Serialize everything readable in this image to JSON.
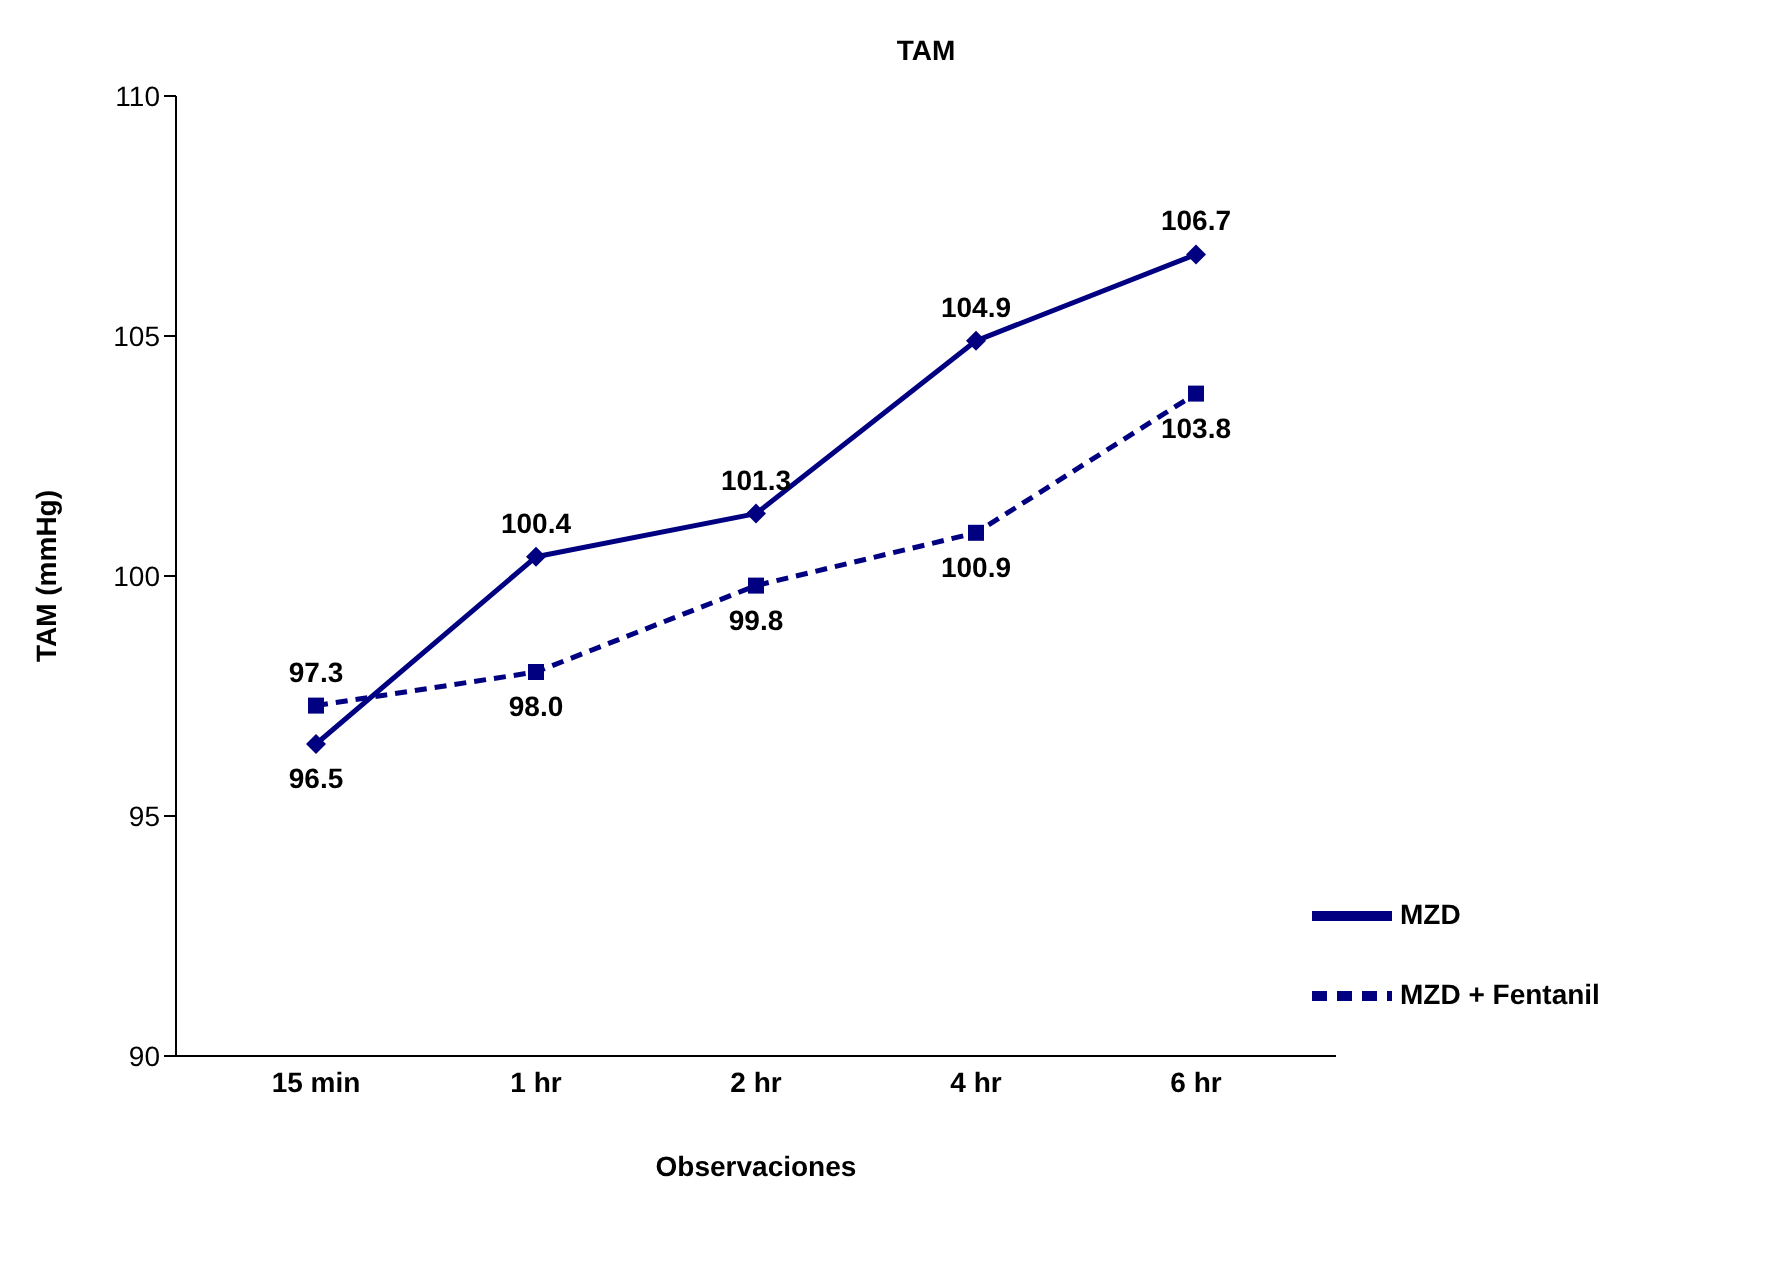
{
  "chart_data": {
    "type": "line",
    "title": "TAM",
    "xlabel": "Observaciones",
    "ylabel": "TAM (mmHg)",
    "categories": [
      "15 min",
      "1 hr",
      "2 hr",
      "4 hr",
      "6 hr"
    ],
    "series": [
      {
        "name": "MZD",
        "color": "#000080",
        "values": [
          96.5,
          100.4,
          101.3,
          104.9,
          106.7
        ],
        "value_labels": [
          "96.5",
          "100.4",
          "101.3",
          "104.9",
          "106.7"
        ],
        "marker": "diamond",
        "line_style": "solid"
      },
      {
        "name": "MZD + Fentanil",
        "color": "#000080",
        "values": [
          97.3,
          98.0,
          99.8,
          100.9,
          103.8
        ],
        "value_labels": [
          "97.3",
          "98.0",
          "99.8",
          "100.9",
          "103.8"
        ],
        "marker": "square",
        "line_style": "dashed"
      }
    ],
    "ylim": [
      90,
      110
    ],
    "yticks": [
      90,
      95,
      100,
      105,
      110
    ],
    "grid": false,
    "legend": "bottom right"
  }
}
